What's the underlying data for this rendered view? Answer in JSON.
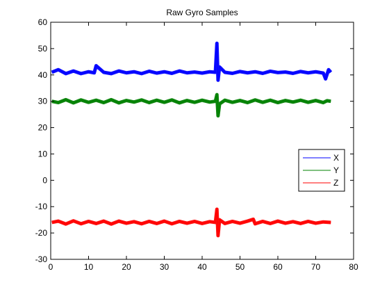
{
  "chart_data": {
    "type": "line",
    "title": "Raw Gyro Samples",
    "xlabel": "",
    "ylabel": "",
    "xlim": [
      0,
      80
    ],
    "ylim": [
      -30,
      60
    ],
    "x_ticks": [
      0,
      10,
      20,
      30,
      40,
      50,
      60,
      70,
      80
    ],
    "y_ticks": [
      -30,
      -20,
      -10,
      0,
      10,
      20,
      30,
      40,
      50,
      60
    ],
    "grid": false,
    "legend_position": "right",
    "series": [
      {
        "name": "X",
        "color": "#0000ff",
        "x": [
          0.3,
          2,
          4,
          6,
          8,
          10,
          11.5,
          12,
          14,
          16,
          18,
          20,
          22,
          24,
          26,
          28,
          30,
          32,
          34,
          36,
          38,
          40,
          42,
          43.5,
          43.9,
          44.2,
          44.6,
          46,
          48,
          50,
          52,
          54,
          56,
          58,
          60,
          62,
          64,
          66,
          68,
          70,
          72,
          72.6,
          73.4,
          74
        ],
        "y": [
          41,
          42,
          40.5,
          41.5,
          40.5,
          41.2,
          40.8,
          43.5,
          41,
          40.5,
          41.5,
          40.8,
          41.2,
          40.5,
          41.4,
          40.7,
          41.2,
          40.6,
          41.5,
          40.8,
          41.1,
          40.7,
          41.2,
          41,
          52,
          38,
          43,
          41,
          40.6,
          41.3,
          40.8,
          41.2,
          40.6,
          41.4,
          40.9,
          41.1,
          40.6,
          41.3,
          40.8,
          41.2,
          40.7,
          38.5,
          42,
          41
        ]
      },
      {
        "name": "Y",
        "color": "#008000",
        "x": [
          0.3,
          2,
          4,
          6,
          8,
          10,
          12,
          14,
          16,
          18,
          20,
          22,
          24,
          26,
          28,
          30,
          32,
          34,
          36,
          38,
          40,
          42,
          43.5,
          43.9,
          44.2,
          44.6,
          46,
          48,
          50,
          52,
          54,
          56,
          58,
          60,
          62,
          64,
          66,
          68,
          70,
          72,
          73,
          74
        ],
        "y": [
          30,
          29.5,
          30.6,
          29.4,
          30.5,
          29.6,
          30.4,
          29.5,
          30.6,
          29.4,
          30.3,
          29.7,
          30.5,
          29.5,
          30.4,
          29.6,
          30.5,
          29.4,
          30.3,
          29.6,
          30.4,
          29.7,
          30,
          32.5,
          24.5,
          29,
          30.4,
          29.6,
          30.3,
          29.5,
          30.5,
          29.6,
          30.4,
          29.5,
          30.3,
          29.7,
          30.4,
          29.6,
          30.3,
          29.5,
          30.2,
          30
        ]
      },
      {
        "name": "Z",
        "color": "#ff0000",
        "x": [
          0.3,
          2,
          4,
          6,
          8,
          10,
          12,
          14,
          16,
          18,
          20,
          22,
          24,
          26,
          28,
          30,
          32,
          34,
          36,
          38,
          40,
          42,
          43.5,
          43.9,
          44.2,
          44.6,
          46,
          48,
          50,
          52,
          53.5,
          54,
          56,
          58,
          60,
          62,
          64,
          66,
          68,
          70,
          72,
          74
        ],
        "y": [
          -16,
          -15.5,
          -16.6,
          -15.4,
          -16.5,
          -15.6,
          -16.4,
          -15.5,
          -16.6,
          -15.5,
          -16.3,
          -15.7,
          -16.5,
          -15.6,
          -16.4,
          -15.5,
          -16.5,
          -15.6,
          -16.3,
          -15.6,
          -16.4,
          -15.7,
          -16,
          -11,
          -21,
          -15,
          -16.4,
          -15.6,
          -16.3,
          -15.5,
          -14.8,
          -16.5,
          -15.6,
          -16.4,
          -15.5,
          -16.3,
          -15.7,
          -16.4,
          -15.6,
          -16.3,
          -15.8,
          -16
        ]
      }
    ]
  }
}
